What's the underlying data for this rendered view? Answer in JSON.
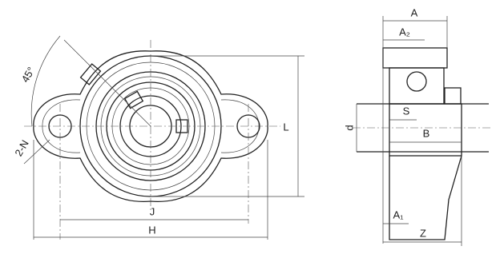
{
  "labels": {
    "angle": "45°",
    "holes": "2-N",
    "J": "J",
    "H": "H",
    "L": "L",
    "A": "A",
    "A2": "A₂",
    "S": "S",
    "B": "B",
    "d": "d",
    "A1": "A₁",
    "Z": "Z"
  }
}
